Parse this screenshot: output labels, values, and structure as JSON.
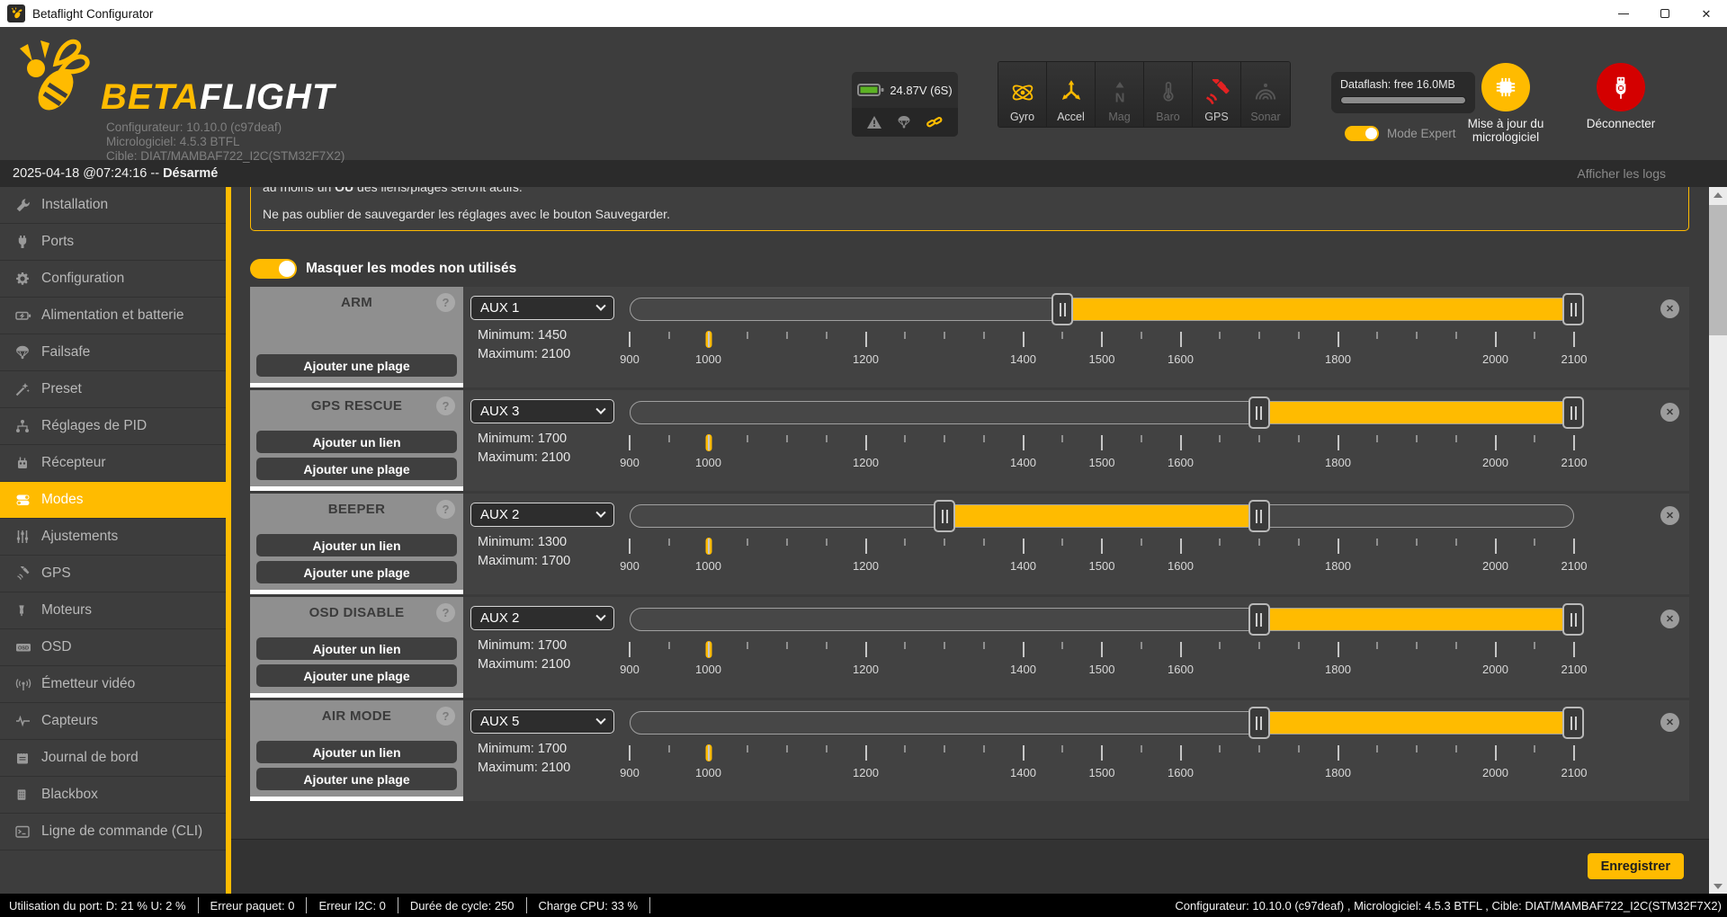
{
  "window": {
    "title": "Betaflight Configurator"
  },
  "header": {
    "logo_beta": "BETA",
    "logo_flight": "FLIGHT",
    "info_line1": "Configurateur: 10.10.0 (c97deaf)",
    "info_line2": "Micrologiciel: 4.5.3 BTFL",
    "info_line3": "Cible: DIAT/MAMBAF722_I2C(STM32F7X2)",
    "battery_voltage": "24.87V (6S)",
    "sensors": [
      {
        "label": "Gyro",
        "icon": "gyro",
        "state": "active"
      },
      {
        "label": "Accel",
        "icon": "accel",
        "state": "active"
      },
      {
        "label": "Mag",
        "icon": "mag",
        "state": "inactive"
      },
      {
        "label": "Baro",
        "icon": "baro",
        "state": "inactive"
      },
      {
        "label": "GPS",
        "icon": "gpssat",
        "state": "error"
      },
      {
        "label": "Sonar",
        "icon": "sonar",
        "state": "inactive"
      }
    ],
    "dataflash_text": "Dataflash: free 16.0MB",
    "expert_label": "Mode Expert",
    "update_label": "Mise à jour du micrologiciel",
    "disconnect_label": "Déconnecter",
    "accent_color": "#ffbb00",
    "danger_color": "#d40000",
    "battery_color": "#5cb324"
  },
  "statusbar": {
    "time_text": "2025-04-18 @07:24:16 -- ",
    "armed_state": "Désarmé",
    "logs_link": "Afficher les logs"
  },
  "sidebar": {
    "items": [
      {
        "label": "Installation",
        "icon": "wrench",
        "active": false
      },
      {
        "label": "Ports",
        "icon": "plug",
        "active": false
      },
      {
        "label": "Configuration",
        "icon": "gear",
        "active": false
      },
      {
        "label": "Alimentation et batterie",
        "icon": "battery",
        "active": false
      },
      {
        "label": "Failsafe",
        "icon": "parachute",
        "active": false
      },
      {
        "label": "Preset",
        "icon": "wand",
        "active": false
      },
      {
        "label": "Réglages de PID",
        "icon": "pid",
        "active": false
      },
      {
        "label": "Récepteur",
        "icon": "receiver",
        "active": false
      },
      {
        "label": "Modes",
        "icon": "modes",
        "active": true
      },
      {
        "label": "Ajustements",
        "icon": "sliders",
        "active": false
      },
      {
        "label": "GPS",
        "icon": "satellite",
        "active": false
      },
      {
        "label": "Moteurs",
        "icon": "motor",
        "active": false
      },
      {
        "label": "OSD",
        "icon": "osd",
        "active": false
      },
      {
        "label": "Émetteur vidéo",
        "icon": "vtx",
        "active": false
      },
      {
        "label": "Capteurs",
        "icon": "pulse",
        "active": false
      },
      {
        "label": "Journal de bord",
        "icon": "logbook",
        "active": false
      },
      {
        "label": "Blackbox",
        "icon": "blackbox",
        "active": false
      },
      {
        "label": "Ligne de commande (CLI)",
        "icon": "cli",
        "active": false
      }
    ]
  },
  "content": {
    "note_line1_pre": "au moins un ",
    "note_line1_bold": "OU",
    "note_line1_post": " des liens/plages seront actifs.",
    "note_line2": "Ne pas oublier de sauvegarder les réglages avec le bouton Sauvegarder.",
    "hide_toggle_label": "Masquer les modes non utilisés",
    "add_link_label": "Ajouter un lien",
    "add_range_label": "Ajouter une plage",
    "min_label": "Minimum:",
    "max_label": "Maximum:",
    "scale": {
      "min": 900,
      "max": 2100,
      "tick_step": 50,
      "labels": [
        900,
        1000,
        1200,
        1400,
        1500,
        1600,
        1800,
        2000,
        2100
      ]
    },
    "channel_value": 1000,
    "modes": [
      {
        "name": "ARM",
        "aux": "AUX 1",
        "min": 1450,
        "max": 2100,
        "buttons": [
          "range"
        ]
      },
      {
        "name": "GPS RESCUE",
        "aux": "AUX 3",
        "min": 1700,
        "max": 2100,
        "buttons": [
          "link",
          "range"
        ]
      },
      {
        "name": "BEEPER",
        "aux": "AUX 2",
        "min": 1300,
        "max": 1700,
        "buttons": [
          "link",
          "range"
        ]
      },
      {
        "name": "OSD DISABLE",
        "aux": "AUX 2",
        "min": 1700,
        "max": 2100,
        "buttons": [
          "link",
          "range"
        ]
      },
      {
        "name": "AIR MODE",
        "aux": "AUX 5",
        "min": 1700,
        "max": 2100,
        "buttons": [
          "link",
          "range"
        ]
      }
    ],
    "save_button": "Enregistrer"
  },
  "footer": {
    "segments": [
      "Utilisation du port: D: 21 % U: 2 %",
      "Erreur paquet: 0",
      "Erreur I2C: 0",
      "Durée de cycle: 250",
      "Charge CPU: 33 %"
    ],
    "right_text": "Configurateur: 10.10.0 (c97deaf) , Micrologiciel: 4.5.3 BTFL , Cible: DIAT/MAMBAF722_I2C(STM32F7X2)"
  }
}
